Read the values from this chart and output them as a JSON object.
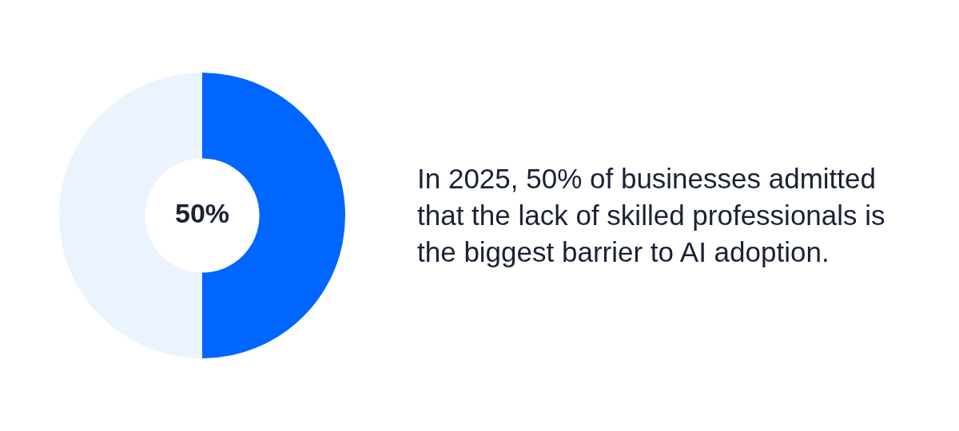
{
  "chart_data": {
    "type": "donut",
    "categories": [
      null,
      null
    ],
    "values": [
      50,
      50
    ],
    "colors": [
      "#0066ff",
      "#ebf3fd"
    ],
    "value_labels": [
      "50%",
      null
    ],
    "annotations": [
      "In 2025, 50% of businesses admitted that the lack of skilled professionals is the biggest barrier to AI adoption."
    ]
  }
}
